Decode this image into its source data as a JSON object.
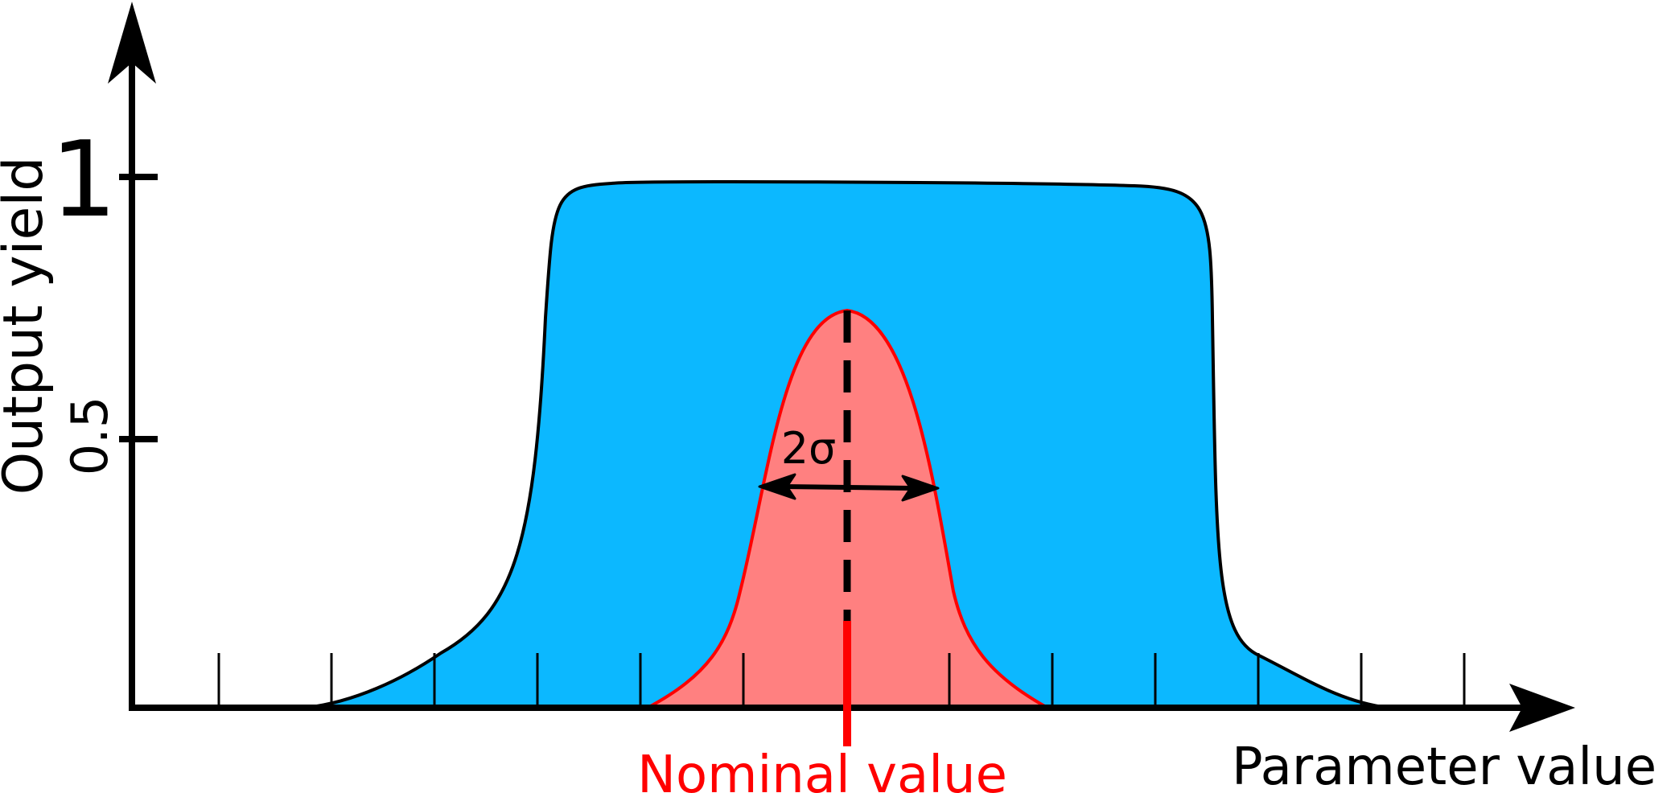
{
  "diagram": {
    "y_axis_label": "Output yield",
    "y_ticks": [
      "1",
      "0.5"
    ],
    "x_axis_label": "Parameter value",
    "sigma_label": "2σ",
    "nominal_label": "Nominal value"
  },
  "colors": {
    "yield_fill": "#0cb8ff",
    "distribution_fill": "#ff8080",
    "distribution_stroke": "#ff0000",
    "nominal_marker": "#ff0000",
    "axes": "#000000"
  }
}
